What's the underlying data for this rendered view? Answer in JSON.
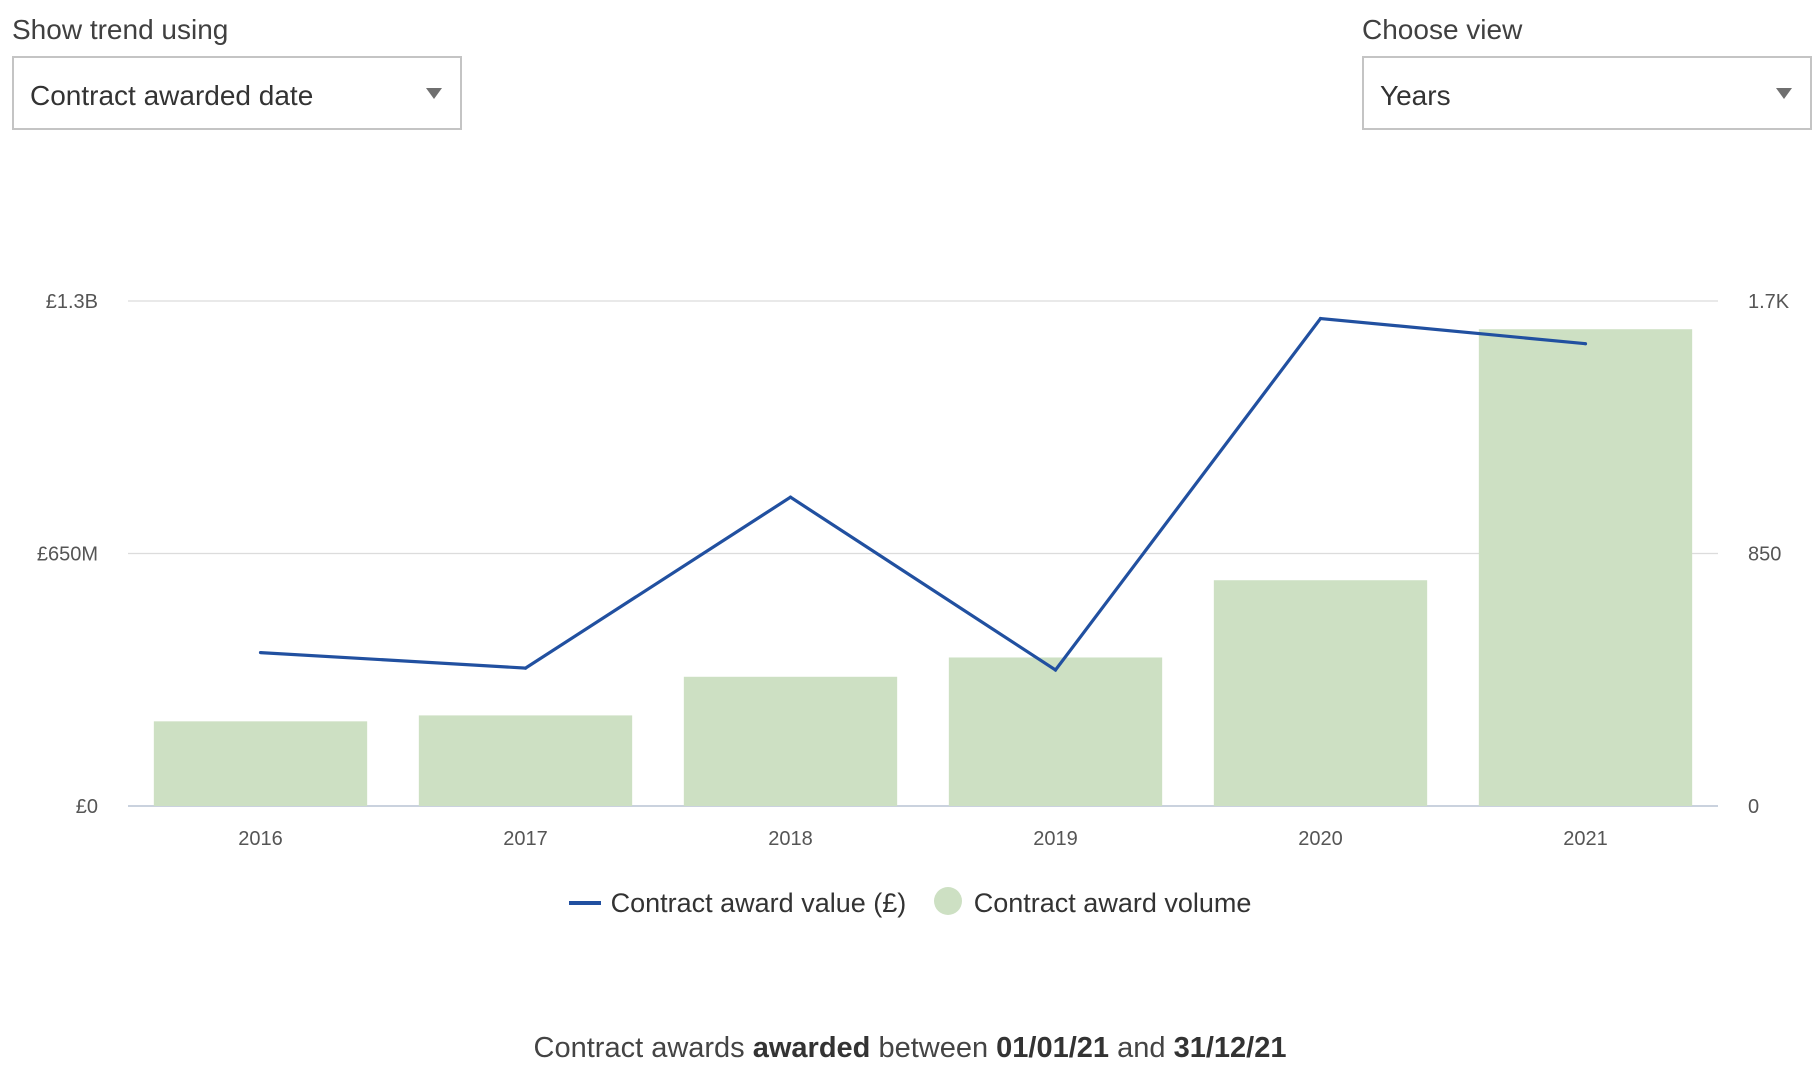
{
  "controls": {
    "trend": {
      "label": "Show trend using",
      "selected": "Contract awarded date"
    },
    "view": {
      "label": "Choose view",
      "selected": "Years"
    }
  },
  "colors": {
    "line": "#2150a0",
    "bar": "#cde0c3",
    "grid": "#dcdcdc"
  },
  "caption": {
    "prefix": "Contract awards ",
    "bold_word": "awarded",
    "middle": " between ",
    "start_date": "01/01/21",
    "joiner": " and ",
    "end_date": "31/12/21"
  },
  "chart_data": {
    "type": "bar",
    "categories": [
      "2016",
      "2017",
      "2018",
      "2019",
      "2020",
      "2021"
    ],
    "series": [
      {
        "name": "Contract award value (£)",
        "type": "line",
        "axis": "left",
        "values": [
          395000000,
          355000000,
          795000000,
          350000000,
          1255000000,
          1190000000
        ]
      },
      {
        "name": "Contract award volume",
        "type": "bar",
        "axis": "right",
        "values": [
          285,
          305,
          435,
          500,
          760,
          1605
        ]
      }
    ],
    "y_left": {
      "ylim": [
        0,
        1300000000
      ],
      "ticks": [
        0,
        650000000,
        1300000000
      ],
      "tick_labels": [
        "£0",
        "£650M",
        "£1.3B"
      ]
    },
    "y_right": {
      "ylim": [
        0,
        1700
      ],
      "ticks": [
        0,
        850,
        1700
      ],
      "tick_labels": [
        "0",
        "850",
        "1.7K"
      ]
    },
    "grid": true,
    "legend": "bottom-center",
    "title": "",
    "xlabel": "",
    "ylabel": ""
  }
}
